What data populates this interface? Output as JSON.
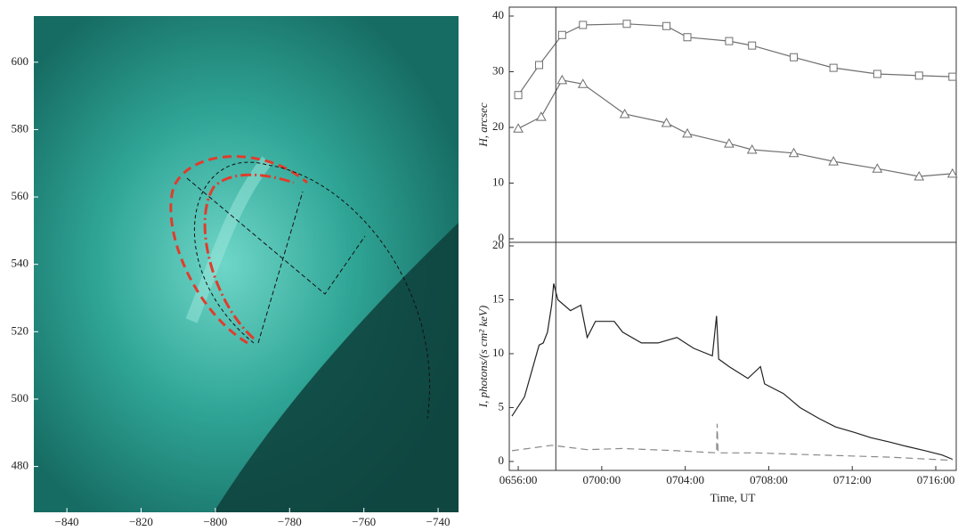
{
  "chart_data": [
    {
      "type": "image",
      "xlim": [
        -848.9,
        -734.5
      ],
      "ylim": [
        466.4,
        613.7
      ],
      "xticks": [
        {
          "value": -840,
          "label": "−840"
        },
        {
          "value": -820,
          "label": "−820"
        },
        {
          "value": -800,
          "label": "−800"
        },
        {
          "value": -780,
          "label": "−780"
        },
        {
          "value": -760,
          "label": "−760"
        },
        {
          "value": -740,
          "label": "−740"
        }
      ],
      "yticks": [
        480,
        500,
        520,
        540,
        560,
        580,
        600
      ]
    },
    {
      "type": "line",
      "y_label": "H, arcsec",
      "xlim": [
        415.57,
        436.98
      ],
      "ylim": [
        -0.64,
        41.6
      ],
      "yticks": [
        0,
        10,
        20,
        30,
        40
      ],
      "vline": 417.8,
      "series": [
        {
          "color": "#6f6f6f",
          "marker": "square",
          "x": [
            416,
            417.0,
            418.1,
            419.1,
            421.2,
            423.1,
            424.1,
            426.1,
            427.2,
            429.2,
            431.1,
            433.2,
            435.2,
            436.8
          ],
          "values": [
            25.8,
            31.2,
            36.6,
            38.4,
            38.6,
            38.2,
            36.2,
            35.5,
            34.7,
            32.6,
            30.7,
            29.6,
            29.3,
            29.1
          ]
        },
        {
          "color": "#6f6f6f",
          "marker": "triangle",
          "x": [
            416,
            417.1,
            418.1,
            419.1,
            421.1,
            423.1,
            424.1,
            426.1,
            427.2,
            429.2,
            431.1,
            433.2,
            435.2,
            436.8
          ],
          "values": [
            19.8,
            21.9,
            28.5,
            27.8,
            22.4,
            20.8,
            18.9,
            17.1,
            16.0,
            15.4,
            13.9,
            12.6,
            11.2,
            11.7
          ]
        }
      ]
    },
    {
      "type": "line",
      "x_label": "Time, UT",
      "y_label": "I, photons/(s cm² keV)",
      "xlim": [
        415.57,
        436.98
      ],
      "ylim": [
        -0.83,
        20.33
      ],
      "yticks": [
        0,
        5,
        10,
        15,
        20
      ],
      "xticks": [
        {
          "value": 416,
          "label": "0656:00"
        },
        {
          "value": 420,
          "label": "0700:00"
        },
        {
          "value": 424,
          "label": "0704:00"
        },
        {
          "value": 428,
          "label": "0708:00"
        },
        {
          "value": 432,
          "label": "0712:00"
        },
        {
          "value": 436,
          "label": "0716:00"
        }
      ],
      "series": [
        {
          "color": "#222222",
          "dash": "solid",
          "x": [
            415.7,
            416.3,
            417.0,
            417.2,
            417.4,
            417.6,
            417.7,
            417.9,
            418.5,
            419.0,
            419.3,
            419.7,
            420.6,
            421.0,
            421.9,
            422.7,
            423.6,
            424.4,
            425.3,
            425.5,
            425.6,
            426.1,
            427.0,
            427.6,
            427.8,
            428.7,
            429.5,
            430.4,
            431.2,
            432.1,
            432.9,
            433.8,
            434.6,
            435.5,
            436.3,
            436.8
          ],
          "values": [
            4.2,
            6,
            10.8,
            11,
            12,
            14.5,
            16.5,
            15,
            14,
            14.5,
            11.5,
            13,
            13,
            12,
            11,
            11,
            11.5,
            10.5,
            9.8,
            13.5,
            9.5,
            8.8,
            7.7,
            8.8,
            7.2,
            6.3,
            5,
            4,
            3.2,
            2.7,
            2.2,
            1.8,
            1.4,
            1.0,
            0.6,
            0.2
          ]
        },
        {
          "color": "#888888",
          "dash": "dashed",
          "x": [
            415.7,
            417.6,
            419.3,
            421.0,
            423.6,
            425.5,
            425.53,
            425.57,
            427.4,
            430.4,
            433.8,
            436.8
          ],
          "values": [
            1.0,
            1.5,
            1.1,
            1.2,
            1.0,
            0.8,
            3.5,
            0.8,
            0.8,
            0.6,
            0.4,
            0.1
          ]
        }
      ]
    }
  ]
}
